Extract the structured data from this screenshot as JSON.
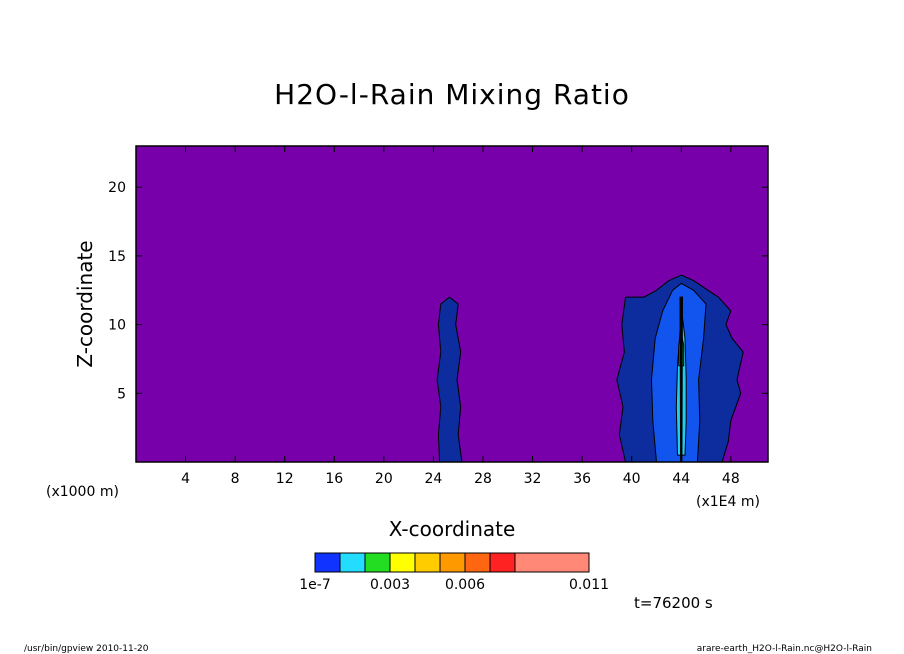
{
  "chart_data": {
    "type": "contour",
    "title": "H2O-l-Rain Mixing Ratio",
    "xlabel": "X-coordinate",
    "ylabel": "Z-coordinate",
    "x_unit": "(x1E4 m)",
    "y_unit": "(x1000 m)",
    "xlim": [
      0,
      51
    ],
    "ylim": [
      0,
      23
    ],
    "x_ticks": [
      {
        "value": 4,
        "label": "4"
      },
      {
        "value": 8,
        "label": "8"
      },
      {
        "value": 12,
        "label": "12"
      },
      {
        "value": 16,
        "label": "16"
      },
      {
        "value": 20,
        "label": "20"
      },
      {
        "value": 24,
        "label": "24"
      },
      {
        "value": 28,
        "label": "28"
      },
      {
        "value": 32,
        "label": "32"
      },
      {
        "value": 36,
        "label": "36"
      },
      {
        "value": 40,
        "label": "40"
      },
      {
        "value": 44,
        "label": "44"
      },
      {
        "value": 48,
        "label": "48"
      }
    ],
    "y_ticks": [
      {
        "value": 5,
        "label": "5"
      },
      {
        "value": 10,
        "label": "10"
      },
      {
        "value": 15,
        "label": "15"
      },
      {
        "value": 20,
        "label": "20"
      }
    ],
    "background_color": "#7700aa",
    "colorbar": {
      "colors": [
        "#1133ff",
        "#22ddff",
        "#22dd22",
        "#ffff00",
        "#ffcc00",
        "#ff9900",
        "#ff6611",
        "#ff2222",
        "#ff8877"
      ],
      "labels": [
        "1e-7",
        "0.003",
        "0.006",
        "0.011"
      ]
    },
    "regions": [
      {
        "name": "cell-25",
        "color": "#0d2c9e",
        "points": [
          [
            24.5,
            0
          ],
          [
            24.4,
            2
          ],
          [
            24.6,
            4
          ],
          [
            24.3,
            6
          ],
          [
            24.6,
            8
          ],
          [
            24.4,
            10
          ],
          [
            24.6,
            11.5
          ],
          [
            25.3,
            12
          ],
          [
            26,
            11.5
          ],
          [
            25.8,
            10
          ],
          [
            26.2,
            8
          ],
          [
            25.9,
            6
          ],
          [
            26.2,
            4
          ],
          [
            26,
            2
          ],
          [
            26.3,
            0
          ]
        ]
      },
      {
        "name": "cell-43-outer",
        "color": "#0d2c9e",
        "points": [
          [
            39.5,
            0
          ],
          [
            39,
            2
          ],
          [
            39.3,
            4
          ],
          [
            38.8,
            6
          ],
          [
            39.4,
            8
          ],
          [
            39.2,
            10
          ],
          [
            39.5,
            12
          ],
          [
            41,
            12
          ],
          [
            42,
            12.5
          ],
          [
            43,
            13.2
          ],
          [
            44,
            13.6
          ],
          [
            45,
            13.2
          ],
          [
            46,
            12.6
          ],
          [
            47,
            12
          ],
          [
            48,
            11
          ],
          [
            47.6,
            10
          ],
          [
            48.1,
            9
          ],
          [
            49,
            8
          ],
          [
            48.5,
            6
          ],
          [
            48.8,
            5
          ],
          [
            48,
            3
          ],
          [
            47.8,
            1.5
          ],
          [
            47.3,
            0
          ]
        ]
      },
      {
        "name": "cell-43-mid",
        "color": "#1155ee",
        "points": [
          [
            42,
            0
          ],
          [
            41.7,
            3
          ],
          [
            41.6,
            6
          ],
          [
            41.9,
            9
          ],
          [
            42.5,
            11
          ],
          [
            43.3,
            12.5
          ],
          [
            44,
            13
          ],
          [
            45,
            12.5
          ],
          [
            46,
            11.5
          ],
          [
            45.8,
            9
          ],
          [
            45.4,
            6
          ],
          [
            45.5,
            3
          ],
          [
            45.3,
            0
          ]
        ]
      },
      {
        "name": "cell-43-core",
        "color": "#22ccee",
        "points": [
          [
            43.7,
            0.5
          ],
          [
            43.6,
            4
          ],
          [
            43.7,
            7
          ],
          [
            43.9,
            9.5
          ],
          [
            44.1,
            10.5
          ],
          [
            44.3,
            9
          ],
          [
            44.4,
            6
          ],
          [
            44.4,
            3
          ],
          [
            44.3,
            0.5
          ]
        ]
      },
      {
        "name": "cell-43-peak",
        "color": "#22dd22",
        "points": [
          [
            43.8,
            7
          ],
          [
            43.8,
            8.5
          ],
          [
            44,
            9.3
          ],
          [
            44.2,
            8.5
          ],
          [
            44.2,
            7
          ]
        ]
      },
      {
        "name": "cell-43-shaft",
        "color": "#000000",
        "points": [
          [
            43.95,
            0
          ],
          [
            44.05,
            0
          ],
          [
            44.1,
            12
          ],
          [
            43.9,
            12
          ]
        ]
      }
    ]
  },
  "time_label": "t=76200 s",
  "footer_left": "/usr/bin/gpview  2010-11-20",
  "footer_right": "arare-earth_H2O-l-Rain.nc@H2O-l-Rain"
}
